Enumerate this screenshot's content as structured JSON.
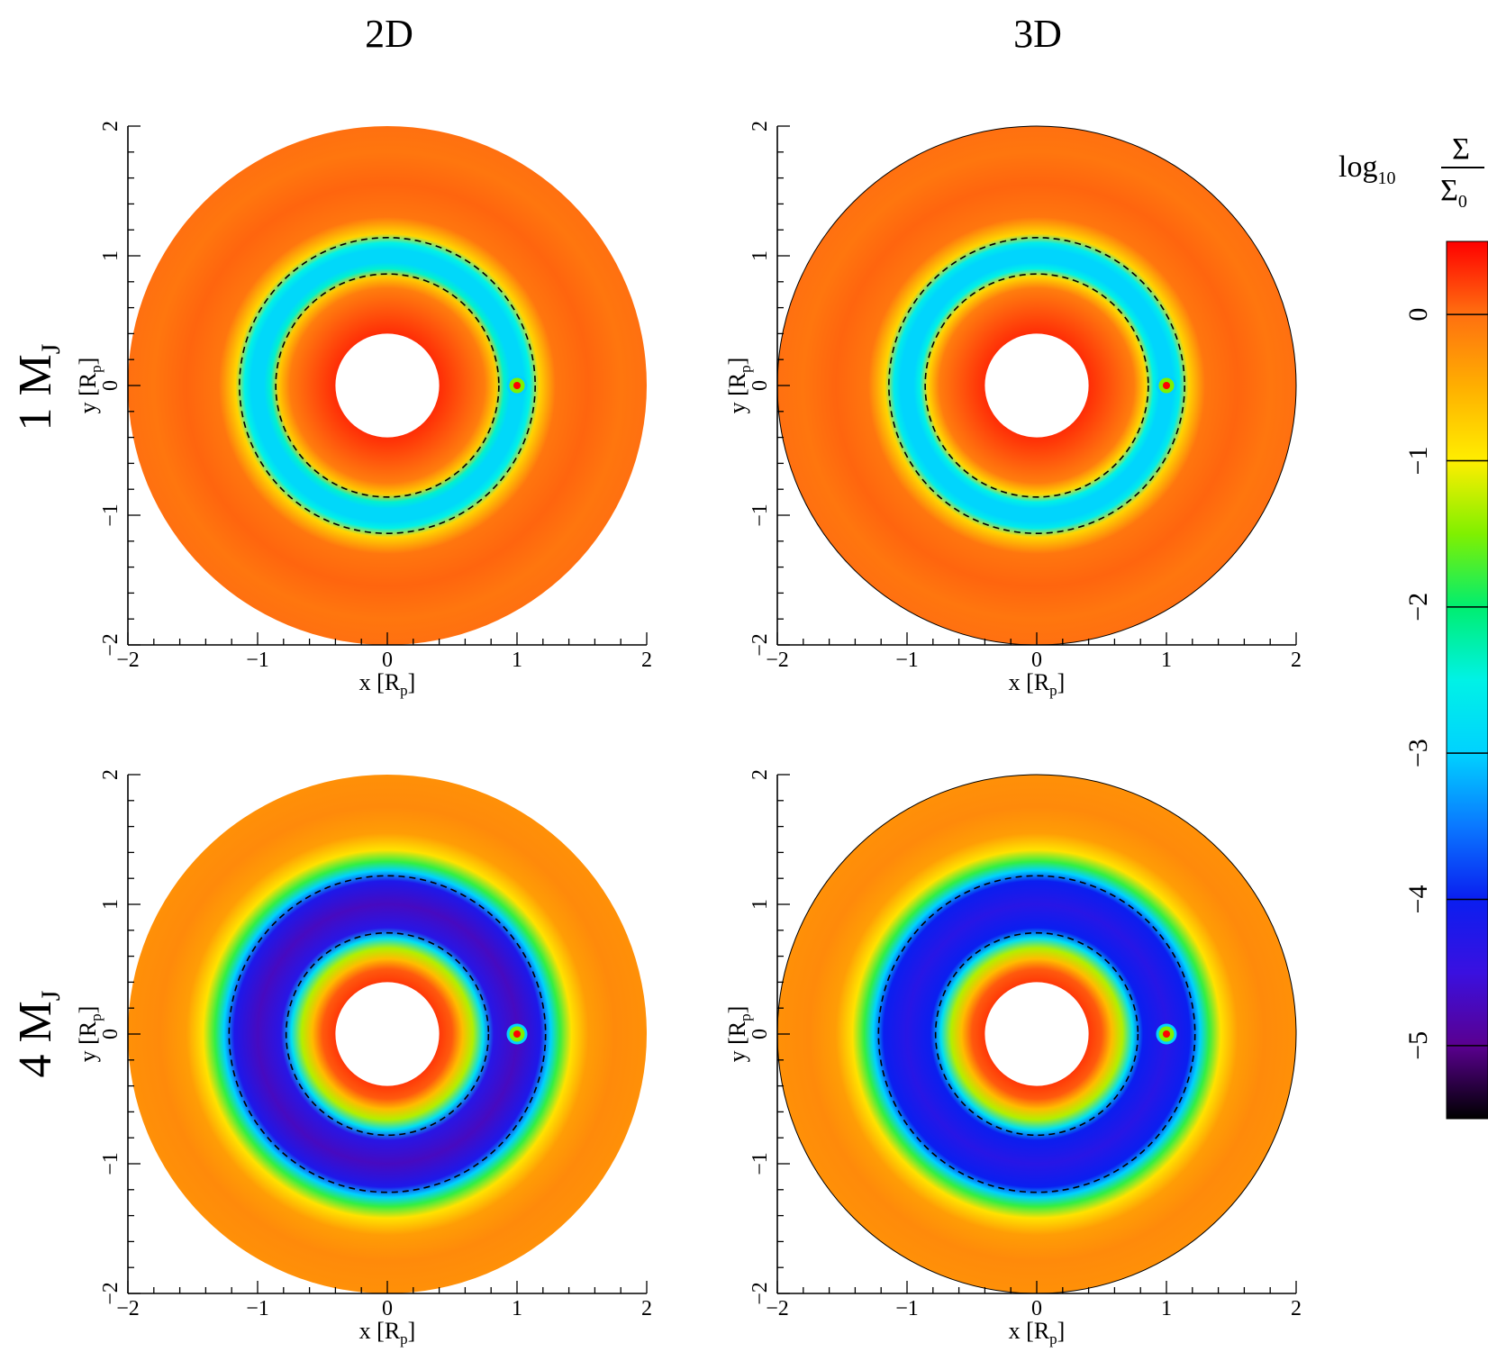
{
  "figure": {
    "column_titles": [
      "2D",
      "3D"
    ],
    "row_labels": [
      {
        "main": "1 M",
        "sub": "J"
      },
      {
        "main": "4 M",
        "sub": "J"
      }
    ],
    "axis_labels": {
      "x": {
        "main": "x [R",
        "sub": "p",
        "end": "]"
      },
      "y": {
        "main": "y [R",
        "sub": "p",
        "end": "]"
      }
    }
  },
  "colorbar": {
    "label": {
      "prefix": "log",
      "prefix_sub": "10",
      "numerator": "Σ",
      "denominator": "Σ",
      "denominator_sub": "0"
    },
    "range": [
      -5.5,
      0.5
    ],
    "ticks": [
      0,
      -1,
      -2,
      -3,
      -4,
      -5
    ],
    "tick_labels": [
      "0",
      "−1",
      "−2",
      "−3",
      "−4",
      "−5"
    ],
    "colormap": [
      {
        "v": -5.5,
        "color": "#000000"
      },
      {
        "v": -5.0,
        "color": "#5a0090"
      },
      {
        "v": -4.5,
        "color": "#3a10e0"
      },
      {
        "v": -4.0,
        "color": "#0a1ef0"
      },
      {
        "v": -3.5,
        "color": "#0a78ff"
      },
      {
        "v": -3.0,
        "color": "#00d2ff"
      },
      {
        "v": -2.5,
        "color": "#00f2e6"
      },
      {
        "v": -2.0,
        "color": "#00ee70"
      },
      {
        "v": -1.5,
        "color": "#80f000"
      },
      {
        "v": -1.0,
        "color": "#ffee00"
      },
      {
        "v": -0.5,
        "color": "#ffb000"
      },
      {
        "v": 0.0,
        "color": "#ff7010"
      },
      {
        "v": 0.5,
        "color": "#ff0000"
      }
    ]
  },
  "chart_data": [
    {
      "type": "heatmap",
      "title": "2D",
      "row": "1 MJ",
      "xlabel": "x [Rp]",
      "ylabel": "y [Rp]",
      "xlim": [
        -2,
        2
      ],
      "ylim": [
        -2,
        2
      ],
      "xticks": [
        -2,
        -1,
        0,
        1,
        2
      ],
      "yticks": [
        -2,
        -1,
        0,
        1,
        2
      ],
      "tick_labels": [
        "−2",
        "−1",
        "0",
        "1",
        "2"
      ],
      "disc_inner_radius": 0.4,
      "disc_outer_radius": 2.0,
      "planet_position": [
        1.0,
        0.0
      ],
      "gap_dashed_radii": [
        0.86,
        1.14
      ],
      "value_profile": [
        {
          "r": 0.4,
          "log_sigma": 0.3
        },
        {
          "r": 0.6,
          "log_sigma": 0.1
        },
        {
          "r": 0.75,
          "log_sigma": -0.1
        },
        {
          "r": 0.84,
          "log_sigma": -0.7
        },
        {
          "r": 0.9,
          "log_sigma": -2.4
        },
        {
          "r": 0.95,
          "log_sigma": -2.9
        },
        {
          "r": 1.05,
          "log_sigma": -2.9
        },
        {
          "r": 1.1,
          "log_sigma": -2.5
        },
        {
          "r": 1.17,
          "log_sigma": -0.8
        },
        {
          "r": 1.3,
          "log_sigma": -0.05
        },
        {
          "r": 1.55,
          "log_sigma": 0.05
        },
        {
          "r": 1.8,
          "log_sigma": -0.05
        },
        {
          "r": 2.0,
          "log_sigma": 0.0
        }
      ]
    },
    {
      "type": "heatmap",
      "title": "3D",
      "row": "1 MJ",
      "xlabel": "x [Rp]",
      "ylabel": "y [Rp]",
      "xlim": [
        -2,
        2
      ],
      "ylim": [
        -2,
        2
      ],
      "xticks": [
        -2,
        -1,
        0,
        1,
        2
      ],
      "yticks": [
        -2,
        -1,
        0,
        1,
        2
      ],
      "tick_labels": [
        "−2",
        "−1",
        "0",
        "1",
        "2"
      ],
      "disc_inner_radius": 0.4,
      "disc_outer_radius": 2.0,
      "planet_position": [
        1.0,
        0.0
      ],
      "gap_dashed_radii": [
        0.86,
        1.14
      ],
      "value_profile": [
        {
          "r": 0.4,
          "log_sigma": 0.3
        },
        {
          "r": 0.6,
          "log_sigma": 0.1
        },
        {
          "r": 0.75,
          "log_sigma": -0.1
        },
        {
          "r": 0.84,
          "log_sigma": -0.8
        },
        {
          "r": 0.9,
          "log_sigma": -2.5
        },
        {
          "r": 0.95,
          "log_sigma": -2.95
        },
        {
          "r": 1.05,
          "log_sigma": -2.95
        },
        {
          "r": 1.1,
          "log_sigma": -2.6
        },
        {
          "r": 1.17,
          "log_sigma": -0.8
        },
        {
          "r": 1.3,
          "log_sigma": -0.05
        },
        {
          "r": 1.55,
          "log_sigma": 0.05
        },
        {
          "r": 1.8,
          "log_sigma": -0.05
        },
        {
          "r": 2.0,
          "log_sigma": 0.0
        }
      ]
    },
    {
      "type": "heatmap",
      "title": "2D",
      "row": "4 MJ",
      "xlabel": "x [Rp]",
      "ylabel": "y [Rp]",
      "xlim": [
        -2,
        2
      ],
      "ylim": [
        -2,
        2
      ],
      "xticks": [
        -2,
        -1,
        0,
        1,
        2
      ],
      "yticks": [
        -2,
        -1,
        0,
        1,
        2
      ],
      "tick_labels": [
        "−2",
        "−1",
        "0",
        "1",
        "2"
      ],
      "disc_inner_radius": 0.4,
      "disc_outer_radius": 2.0,
      "planet_position": [
        1.0,
        0.0
      ],
      "gap_dashed_radii": [
        0.78,
        1.22
      ],
      "value_profile": [
        {
          "r": 0.4,
          "log_sigma": 0.25
        },
        {
          "r": 0.5,
          "log_sigma": 0.1
        },
        {
          "r": 0.58,
          "log_sigma": -0.6
        },
        {
          "r": 0.66,
          "log_sigma": -1.3
        },
        {
          "r": 0.74,
          "log_sigma": -2.8
        },
        {
          "r": 0.82,
          "log_sigma": -4.3
        },
        {
          "r": 1.0,
          "log_sigma": -4.7
        },
        {
          "r": 1.18,
          "log_sigma": -4.2
        },
        {
          "r": 1.26,
          "log_sigma": -3.0
        },
        {
          "r": 1.33,
          "log_sigma": -1.8
        },
        {
          "r": 1.42,
          "log_sigma": -0.9
        },
        {
          "r": 1.55,
          "log_sigma": -0.35
        },
        {
          "r": 1.75,
          "log_sigma": -0.2
        },
        {
          "r": 2.0,
          "log_sigma": -0.25
        }
      ]
    },
    {
      "type": "heatmap",
      "title": "3D",
      "row": "4 MJ",
      "xlabel": "x [Rp]",
      "ylabel": "y [Rp]",
      "xlim": [
        -2,
        2
      ],
      "ylim": [
        -2,
        2
      ],
      "xticks": [
        -2,
        -1,
        0,
        1,
        2
      ],
      "yticks": [
        -2,
        -1,
        0,
        1,
        2
      ],
      "tick_labels": [
        "−2",
        "−1",
        "0",
        "1",
        "2"
      ],
      "disc_inner_radius": 0.4,
      "disc_outer_radius": 2.0,
      "planet_position": [
        1.0,
        0.0
      ],
      "gap_dashed_radii": [
        0.78,
        1.22
      ],
      "value_profile": [
        {
          "r": 0.4,
          "log_sigma": 0.25
        },
        {
          "r": 0.5,
          "log_sigma": 0.1
        },
        {
          "r": 0.58,
          "log_sigma": -0.6
        },
        {
          "r": 0.66,
          "log_sigma": -1.3
        },
        {
          "r": 0.74,
          "log_sigma": -2.8
        },
        {
          "r": 0.82,
          "log_sigma": -4.0
        },
        {
          "r": 1.0,
          "log_sigma": -4.3
        },
        {
          "r": 1.18,
          "log_sigma": -4.0
        },
        {
          "r": 1.26,
          "log_sigma": -3.0
        },
        {
          "r": 1.33,
          "log_sigma": -1.8
        },
        {
          "r": 1.42,
          "log_sigma": -0.9
        },
        {
          "r": 1.55,
          "log_sigma": -0.35
        },
        {
          "r": 1.75,
          "log_sigma": -0.2
        },
        {
          "r": 2.0,
          "log_sigma": -0.25
        }
      ]
    }
  ]
}
